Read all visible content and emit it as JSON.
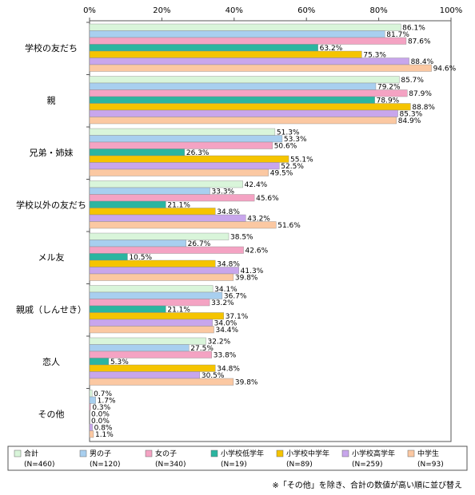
{
  "chart_data": {
    "type": "bar",
    "orientation": "horizontal",
    "xlim": [
      0,
      100
    ],
    "x_ticks": [
      "0%",
      "20%",
      "40%",
      "60%",
      "80%",
      "100%"
    ],
    "categories": [
      "学校の友だち",
      "親",
      "兄弟・姉妹",
      "学校以外の友だち",
      "メル友",
      "親戚（しんせき）",
      "恋人",
      "その他"
    ],
    "series": [
      {
        "name": "合計",
        "n": "(N=460)",
        "color": "#d9f5da",
        "values": [
          86.1,
          85.7,
          51.3,
          42.4,
          38.5,
          34.1,
          32.2,
          0.7
        ]
      },
      {
        "name": "男の子",
        "n": "(N=120)",
        "color": "#a8cfef",
        "values": [
          81.7,
          79.2,
          53.3,
          33.3,
          26.7,
          36.7,
          27.5,
          1.7
        ]
      },
      {
        "name": "女の子",
        "n": "(N=340)",
        "color": "#f4a3c3",
        "values": [
          87.6,
          87.9,
          50.6,
          45.6,
          42.6,
          33.2,
          33.8,
          0.3
        ]
      },
      {
        "name": "小学校低学年",
        "n": "(N=19)",
        "color": "#2bb5a0",
        "values": [
          63.2,
          78.9,
          26.3,
          21.1,
          10.5,
          21.1,
          5.3,
          0.0
        ]
      },
      {
        "name": "小学校中学年",
        "n": "(N=89)",
        "color": "#f5c400",
        "values": [
          75.3,
          88.8,
          55.1,
          34.8,
          34.8,
          37.1,
          34.8,
          0.0
        ]
      },
      {
        "name": "小学校高学年",
        "n": "(N=259)",
        "color": "#c8a6ec",
        "values": [
          88.4,
          85.3,
          52.5,
          43.2,
          41.3,
          34.0,
          30.5,
          0.8
        ]
      },
      {
        "name": "中学生",
        "n": "(N=93)",
        "color": "#fbc8a2",
        "values": [
          94.6,
          84.9,
          49.5,
          51.6,
          39.8,
          34.4,
          39.8,
          1.1
        ]
      }
    ],
    "note": "※「その他」を除き、合計の数値が高い順に並び替え"
  }
}
